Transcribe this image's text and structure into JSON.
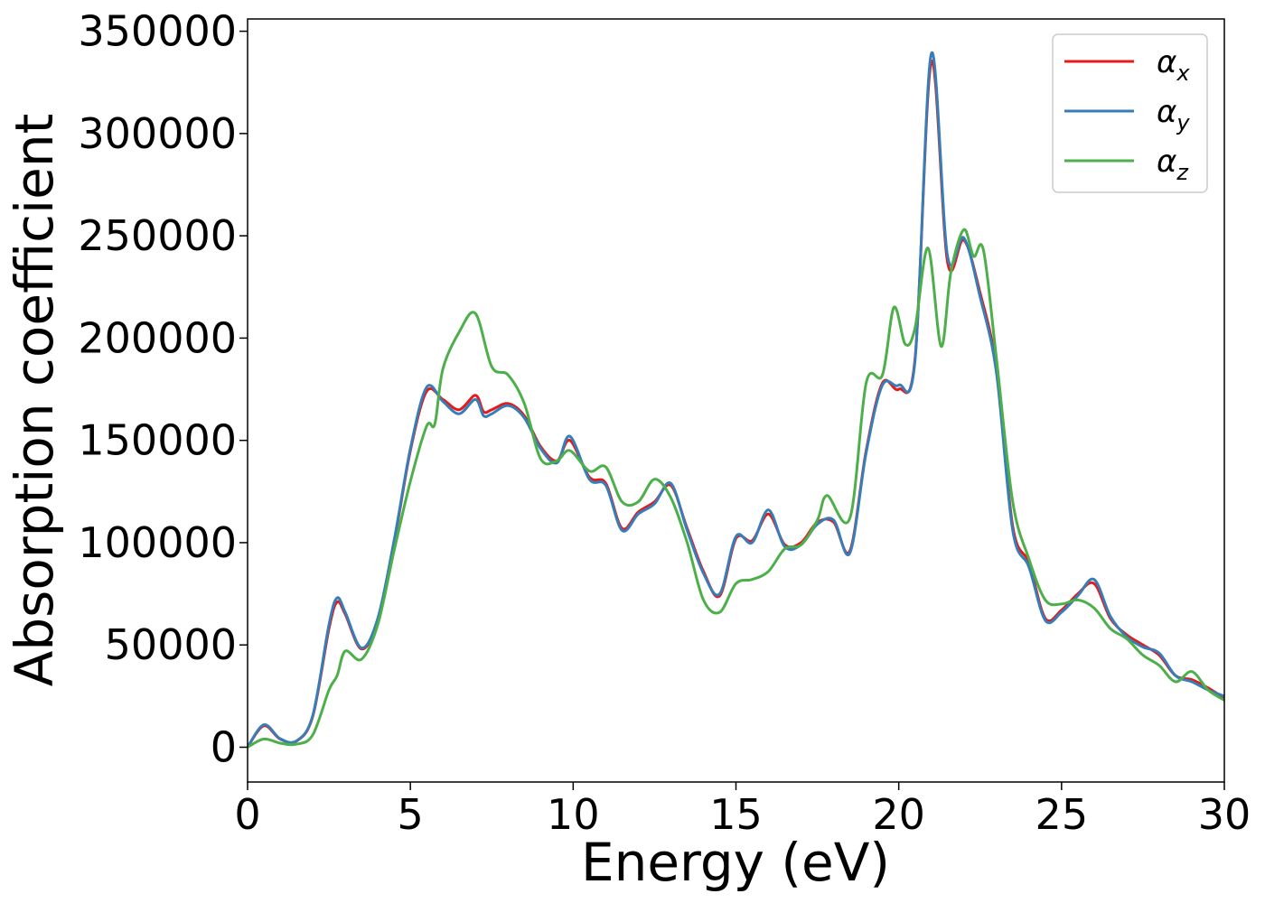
{
  "chart_data": {
    "type": "line",
    "xlabel": "Energy (eV)",
    "ylabel": "Absorption coefficient",
    "xlim": [
      0,
      30
    ],
    "ylim": [
      -17000,
      356000
    ],
    "xticks": [
      0,
      5,
      10,
      15,
      20,
      25,
      30
    ],
    "xtick_labels": [
      "0",
      "5",
      "10",
      "15",
      "20",
      "25",
      "30"
    ],
    "yticks": [
      0,
      50000,
      100000,
      150000,
      200000,
      250000,
      300000,
      350000
    ],
    "ytick_labels": [
      "0",
      "50000",
      "100000",
      "150000",
      "200000",
      "250000",
      "300000",
      "350000"
    ],
    "grid": false,
    "legend_position": "top-right",
    "series": [
      {
        "name": "α",
        "subscript": "x",
        "color": "#e41a1c",
        "x": [
          0,
          0.5,
          1.0,
          1.5,
          2.0,
          2.5,
          2.75,
          3.0,
          3.5,
          4.0,
          4.5,
          5.0,
          5.5,
          6.0,
          6.5,
          7.0,
          7.25,
          7.5,
          8.0,
          8.5,
          9.0,
          9.5,
          9.9,
          10.5,
          11.0,
          11.5,
          12.0,
          12.5,
          13.0,
          13.5,
          14.0,
          14.5,
          15.0,
          15.5,
          16.0,
          16.5,
          17.0,
          17.5,
          18.0,
          18.5,
          19.0,
          19.5,
          20.0,
          20.5,
          21.0,
          21.5,
          22.0,
          22.5,
          23.0,
          23.5,
          24.0,
          24.5,
          25.0,
          25.5,
          26.0,
          26.5,
          27.0,
          27.5,
          28.0,
          28.5,
          29.0,
          29.5,
          30.0
        ],
        "y": [
          0,
          10500,
          4000,
          3000,
          15000,
          58000,
          71000,
          65000,
          48000,
          62000,
          100000,
          145000,
          174000,
          170000,
          165000,
          172000,
          164000,
          165000,
          168000,
          162000,
          147000,
          140000,
          150000,
          132000,
          129000,
          107000,
          115000,
          120000,
          128000,
          107000,
          86000,
          74000,
          102000,
          101000,
          114000,
          99000,
          100000,
          110000,
          110000,
          96000,
          145000,
          178000,
          175000,
          190000,
          335000,
          237000,
          248000,
          222000,
          185000,
          108000,
          90000,
          63000,
          67000,
          75000,
          80000,
          63000,
          55000,
          50000,
          45000,
          35000,
          33000,
          29000,
          24000
        ]
      },
      {
        "name": "α",
        "subscript": "y",
        "color": "#377eb8",
        "x": [
          0,
          0.5,
          1.0,
          1.5,
          2.0,
          2.5,
          2.75,
          3.0,
          3.5,
          4.0,
          4.5,
          5.0,
          5.5,
          6.0,
          6.5,
          7.0,
          7.25,
          7.5,
          8.0,
          8.5,
          9.0,
          9.5,
          9.9,
          10.5,
          11.0,
          11.5,
          12.0,
          12.5,
          13.0,
          13.5,
          14.0,
          14.5,
          15.0,
          15.5,
          16.0,
          16.5,
          17.0,
          17.5,
          18.0,
          18.5,
          19.0,
          19.5,
          20.0,
          20.5,
          21.0,
          21.5,
          22.0,
          22.5,
          23.0,
          23.5,
          24.0,
          24.5,
          25.0,
          25.5,
          26.0,
          26.5,
          27.0,
          27.5,
          28.0,
          28.5,
          29.0,
          29.5,
          30.0
        ],
        "y": [
          0,
          11000,
          4200,
          3100,
          15500,
          60000,
          73000,
          66000,
          48500,
          63000,
          101000,
          146000,
          176000,
          169000,
          163000,
          170000,
          162000,
          163000,
          167000,
          161000,
          146000,
          139000,
          152000,
          131000,
          128000,
          106000,
          114000,
          119000,
          129000,
          106000,
          85000,
          75000,
          103000,
          100000,
          116000,
          98000,
          99000,
          109000,
          111000,
          95000,
          144000,
          177000,
          177000,
          189000,
          339000,
          240000,
          249000,
          220000,
          183000,
          106000,
          88000,
          62000,
          66000,
          74000,
          82000,
          64000,
          54000,
          49000,
          46000,
          35000,
          32000,
          28000,
          25000
        ]
      },
      {
        "name": "α",
        "subscript": "z",
        "color": "#4daf4a",
        "x": [
          0,
          0.5,
          1.0,
          1.5,
          2.0,
          2.5,
          2.75,
          3.0,
          3.5,
          4.0,
          4.5,
          5.0,
          5.5,
          5.75,
          6.0,
          6.5,
          7.0,
          7.5,
          8.0,
          8.5,
          9.0,
          9.5,
          9.9,
          10.5,
          11.0,
          11.5,
          12.0,
          12.5,
          13.0,
          13.5,
          14.0,
          14.5,
          15.0,
          15.5,
          16.0,
          16.5,
          17.0,
          17.5,
          17.8,
          18.5,
          19.0,
          19.5,
          19.85,
          20.2,
          20.5,
          20.9,
          21.3,
          21.6,
          22.0,
          22.3,
          22.6,
          23.0,
          23.5,
          24.0,
          24.5,
          25.0,
          25.5,
          26.0,
          26.5,
          27.0,
          27.5,
          28.0,
          28.5,
          29.0,
          29.5,
          30.0
        ],
        "y": [
          0,
          4000,
          2000,
          1500,
          6000,
          28000,
          35000,
          47000,
          43000,
          60000,
          96000,
          130000,
          157000,
          158000,
          185000,
          203000,
          212000,
          186000,
          182000,
          168000,
          141000,
          140000,
          145000,
          135000,
          137000,
          120000,
          120000,
          131000,
          122000,
          100000,
          72000,
          66000,
          80000,
          82000,
          86000,
          97000,
          99000,
          111000,
          123000,
          112000,
          178000,
          182000,
          215000,
          197000,
          205000,
          244000,
          196000,
          232000,
          253000,
          240000,
          243000,
          190000,
          120000,
          92000,
          72000,
          70000,
          72000,
          68000,
          58000,
          53000,
          45000,
          40000,
          32000,
          37000,
          28000,
          23000
        ]
      }
    ]
  }
}
